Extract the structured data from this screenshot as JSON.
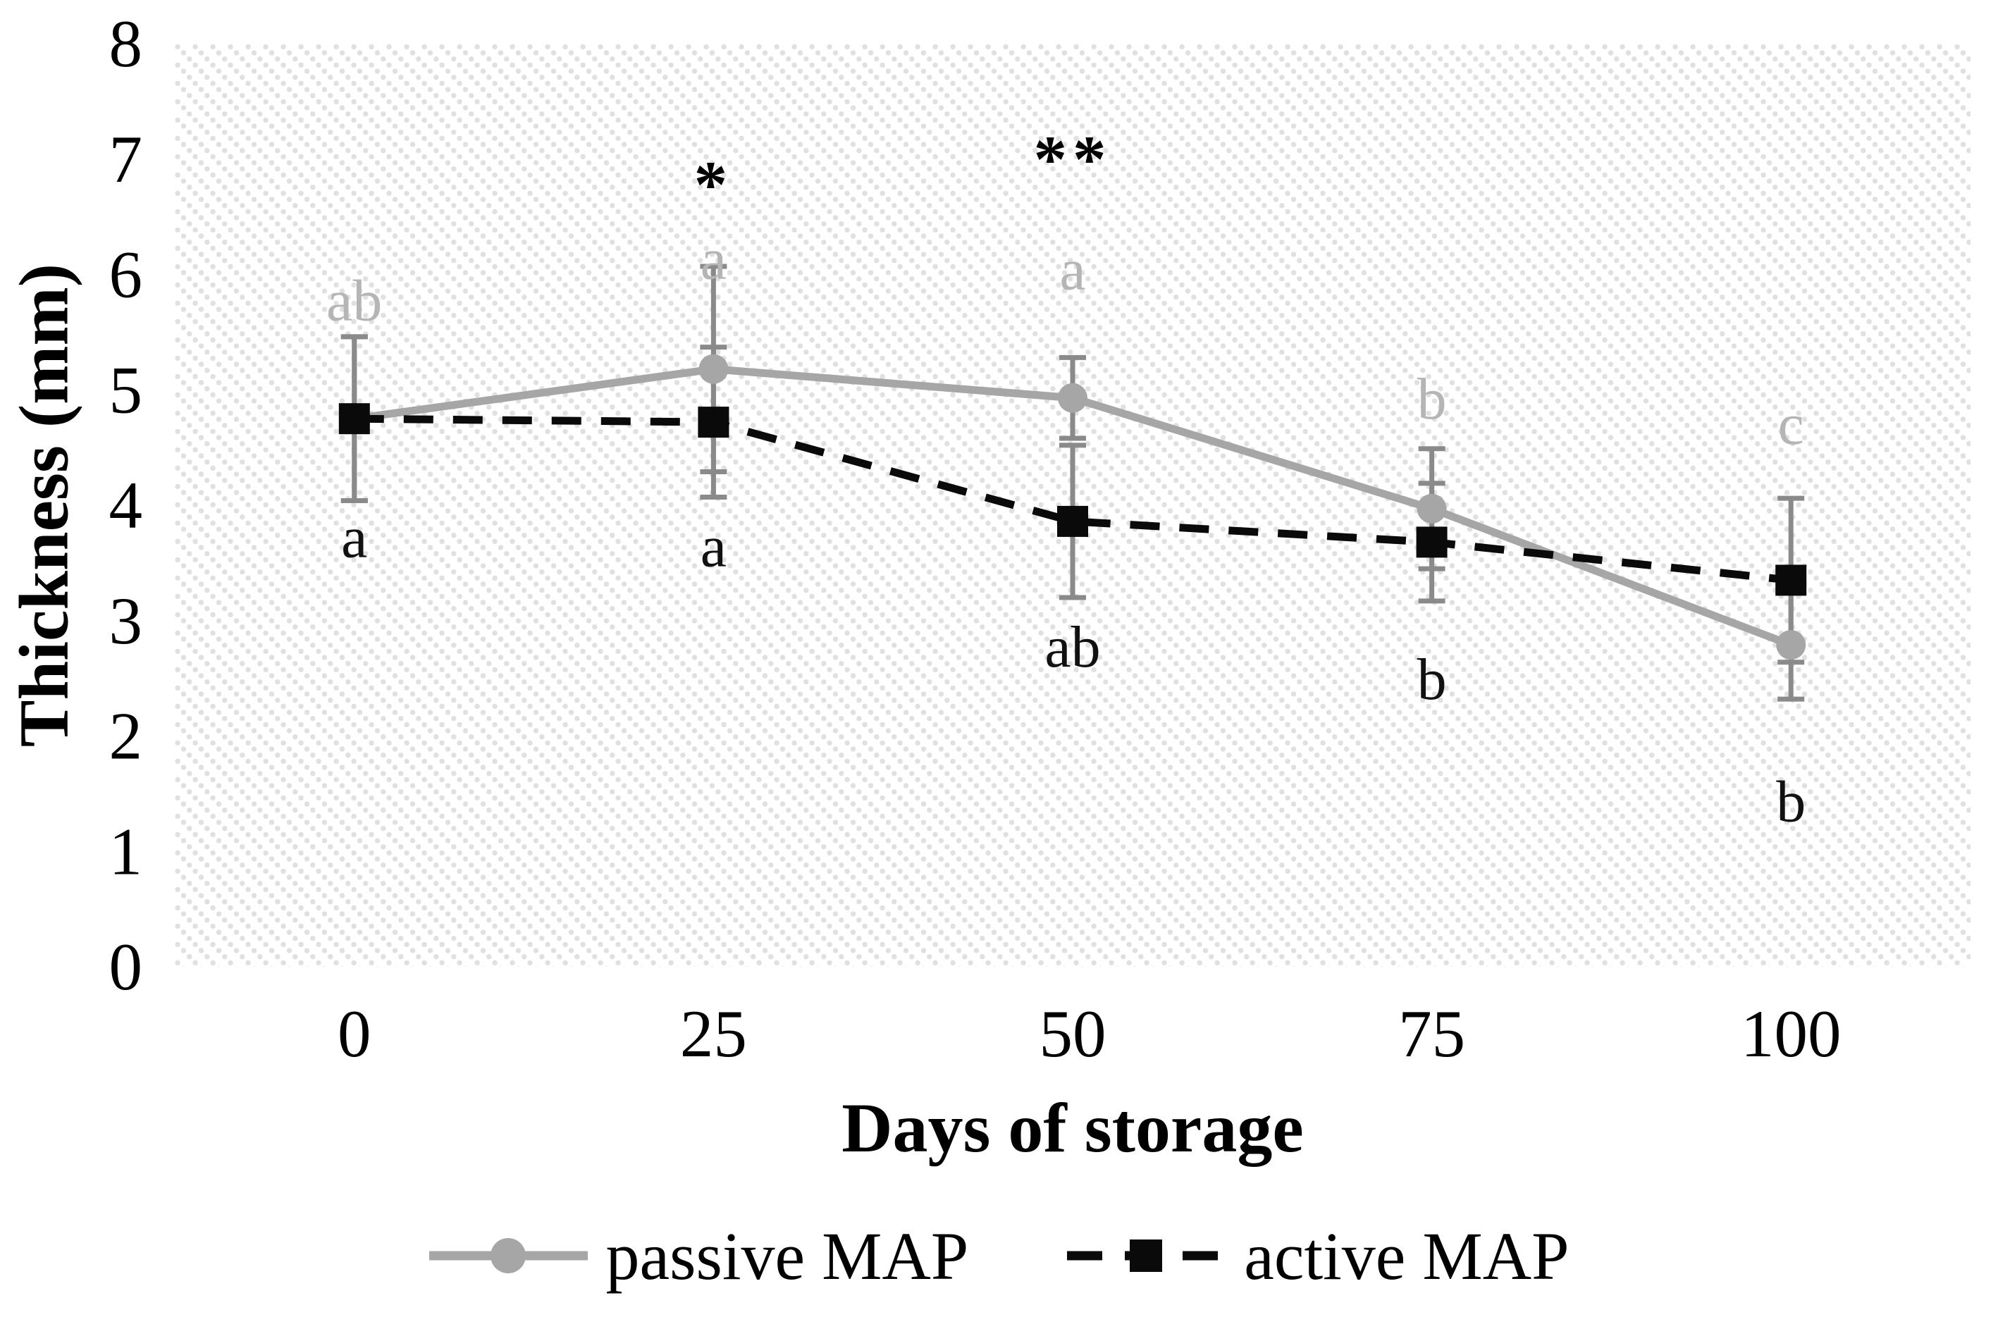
{
  "chart_data": {
    "type": "line",
    "title": "",
    "xlabel": "Days of storage",
    "ylabel": "Thickness (mm)",
    "x_categories": [
      "0",
      "25",
      "50",
      "75",
      "100"
    ],
    "x_values_days": [
      0,
      25,
      50,
      75,
      100
    ],
    "yticks": [
      "0",
      "1",
      "2",
      "3",
      "4",
      "5",
      "6",
      "7",
      "8"
    ],
    "ylim": [
      0,
      8
    ],
    "grid": false,
    "axis_lines": false,
    "plot_background": "light-diagonal-hatch",
    "legend_position": "bottom",
    "error_bar_color": "#8a8a8a",
    "series": [
      {
        "name": "passive MAP",
        "marker": "circle",
        "line_style": "solid",
        "color": "#a6a6a6",
        "values": [
          4.75,
          5.18,
          4.93,
          3.97,
          2.79
        ],
        "error": [
          0.71,
          0.89,
          0.35,
          0.52,
          0.47
        ],
        "point_labels": [
          "ab",
          "a",
          "a",
          "b",
          "c"
        ],
        "label_color": "#b5b5b5",
        "label_y": [
          5.77,
          6.13,
          6.04,
          4.92,
          4.7
        ]
      },
      {
        "name": "active MAP",
        "marker": "square",
        "line_style": "dashed",
        "color": "#0a0a0a",
        "values": [
          4.75,
          4.72,
          3.86,
          3.68,
          3.35
        ],
        "error": [
          0.71,
          0.65,
          0.66,
          0.51,
          0.71
        ],
        "point_labels": [
          "a",
          "a",
          "ab",
          "b",
          "b"
        ],
        "label_color": "#111111",
        "label_y": [
          3.72,
          3.64,
          2.77,
          2.49,
          1.43
        ]
      }
    ],
    "annotations": [
      {
        "text": "*",
        "x_category": "25",
        "y": 6.78
      },
      {
        "text": "**",
        "x_category": "50",
        "y": 7.0
      }
    ]
  }
}
